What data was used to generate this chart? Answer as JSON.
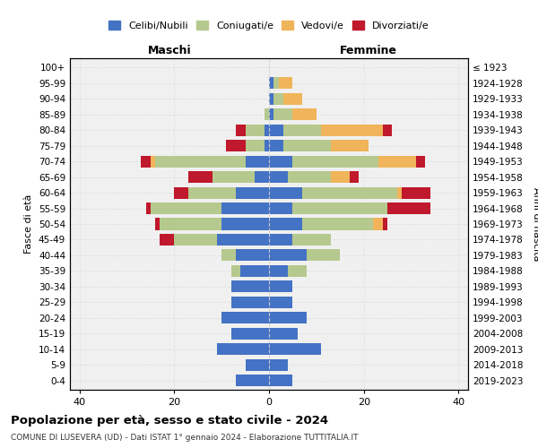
{
  "age_groups": [
    "100+",
    "95-99",
    "90-94",
    "85-89",
    "80-84",
    "75-79",
    "70-74",
    "65-69",
    "60-64",
    "55-59",
    "50-54",
    "45-49",
    "40-44",
    "35-39",
    "30-34",
    "25-29",
    "20-24",
    "15-19",
    "10-14",
    "5-9",
    "0-4"
  ],
  "birth_years": [
    "≤ 1923",
    "1924-1928",
    "1929-1933",
    "1934-1938",
    "1939-1943",
    "1944-1948",
    "1949-1953",
    "1954-1958",
    "1959-1963",
    "1964-1968",
    "1969-1973",
    "1974-1978",
    "1979-1983",
    "1984-1988",
    "1989-1993",
    "1994-1998",
    "1999-2003",
    "2004-2008",
    "2009-2013",
    "2014-2018",
    "2019-2023"
  ],
  "colors": {
    "celibi": "#4472c4",
    "coniugati": "#b5c98e",
    "vedovi": "#f0b45a",
    "divorziati": "#c0182c"
  },
  "maschi": {
    "celibi": [
      0,
      0,
      0,
      0,
      1,
      1,
      5,
      3,
      7,
      10,
      10,
      11,
      7,
      6,
      8,
      8,
      10,
      8,
      11,
      5,
      7
    ],
    "coniugati": [
      0,
      0,
      0,
      1,
      4,
      4,
      19,
      9,
      10,
      15,
      13,
      9,
      3,
      2,
      0,
      0,
      0,
      0,
      0,
      0,
      0
    ],
    "vedovi": [
      0,
      0,
      0,
      0,
      0,
      0,
      1,
      0,
      0,
      0,
      0,
      0,
      0,
      0,
      0,
      0,
      0,
      0,
      0,
      0,
      0
    ],
    "divorziati": [
      0,
      0,
      0,
      0,
      2,
      4,
      2,
      5,
      3,
      1,
      1,
      3,
      0,
      0,
      0,
      0,
      0,
      0,
      0,
      0,
      0
    ]
  },
  "femmine": {
    "celibi": [
      0,
      1,
      1,
      1,
      3,
      3,
      5,
      4,
      7,
      5,
      7,
      5,
      8,
      4,
      5,
      5,
      8,
      6,
      11,
      4,
      5
    ],
    "coniugati": [
      0,
      1,
      2,
      4,
      8,
      10,
      18,
      9,
      20,
      20,
      15,
      8,
      7,
      4,
      0,
      0,
      0,
      0,
      0,
      0,
      0
    ],
    "vedovi": [
      0,
      3,
      4,
      5,
      13,
      8,
      8,
      4,
      1,
      0,
      2,
      0,
      0,
      0,
      0,
      0,
      0,
      0,
      0,
      0,
      0
    ],
    "divorziati": [
      0,
      0,
      0,
      0,
      2,
      0,
      2,
      2,
      6,
      9,
      1,
      0,
      0,
      0,
      0,
      0,
      0,
      0,
      0,
      0,
      0
    ]
  },
  "xlim": 42,
  "title": "Popolazione per età, sesso e stato civile - 2024",
  "subtitle": "COMUNE DI LUSEVERA (UD) - Dati ISTAT 1° gennaio 2024 - Elaborazione TUTTITALIA.IT",
  "xlabel_left": "Maschi",
  "xlabel_right": "Femmine",
  "ylabel_left": "Fasce di età",
  "ylabel_right": "Anni di nascita",
  "legend_labels": [
    "Celibi/Nubili",
    "Coniugati/e",
    "Vedovi/e",
    "Divorziati/e"
  ]
}
